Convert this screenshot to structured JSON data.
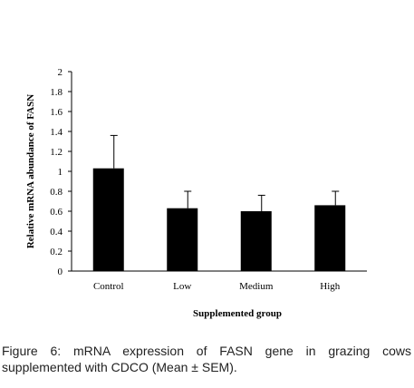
{
  "chart_data": {
    "type": "bar",
    "categories": [
      "Control",
      "Low",
      "Medium",
      "High"
    ],
    "values": [
      1.03,
      0.63,
      0.6,
      0.66
    ],
    "errors": [
      0.33,
      0.17,
      0.16,
      0.14
    ],
    "ylabel": "Relative mRNA abundance  of FASN",
    "xlabel": "Supplemented group",
    "ylim": [
      0,
      2
    ],
    "yticks": [
      "0",
      "0.2",
      "0.4",
      "0.6",
      "0.8",
      "1",
      "1.2",
      "1.4",
      "1.6",
      "1.8",
      "2"
    ],
    "bar_color": "#000000",
    "grid": false
  },
  "caption": {
    "label": "Figure 6:",
    "text": " mRNA expression of FASN gene in grazing cows supplemented with CDCO (Mean ± SEM)."
  }
}
